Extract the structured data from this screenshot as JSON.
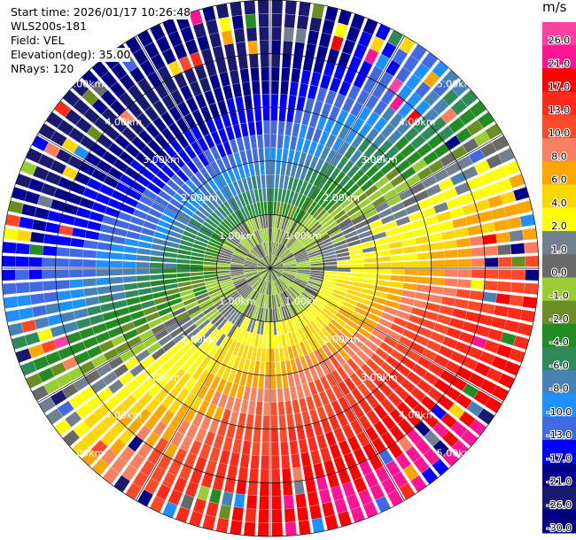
{
  "info": {
    "start_time": "Start time: 2026/01/17 10:26:48",
    "instrument": "WLS200s-181",
    "field": "Field: VEL",
    "elevation": "Elevation(deg): 35.00",
    "nrays": "NRays: 120"
  },
  "colorbar": {
    "unit": "m/s",
    "bins": [
      {
        "label": "26.0",
        "color": "#ff40a0"
      },
      {
        "label": "21.0",
        "color": "#ff1493"
      },
      {
        "label": "17.0",
        "color": "#ff0000"
      },
      {
        "label": "13.0",
        "color": "#ff2a1a"
      },
      {
        "label": "10.0",
        "color": "#ff4a2a"
      },
      {
        "label": "8.0",
        "color": "#fa8060"
      },
      {
        "label": "6.0",
        "color": "#ffa500"
      },
      {
        "label": "4.0",
        "color": "#ffd700"
      },
      {
        "label": "2.0",
        "color": "#ffff00"
      },
      {
        "label": "1.0",
        "color": "#708090"
      },
      {
        "label": "0.0",
        "color": "#696969"
      },
      {
        "label": "-1.0",
        "color": "#9acd32"
      },
      {
        "label": "-2.0",
        "color": "#6b8e23"
      },
      {
        "label": "-4.0",
        "color": "#228b22"
      },
      {
        "label": "-6.0",
        "color": "#2e8b57"
      },
      {
        "label": "-8.0",
        "color": "#4682b4"
      },
      {
        "label": "-10.0",
        "color": "#1e90ff"
      },
      {
        "label": "-13.0",
        "color": "#4169e1"
      },
      {
        "label": "-17.0",
        "color": "#0000ff"
      },
      {
        "label": "-21.0",
        "color": "#00008b"
      },
      {
        "label": "-26.0",
        "color": "#191970"
      },
      {
        "label": "-30.0",
        "color": "#000080"
      }
    ]
  },
  "chart_data": {
    "type": "heatmap",
    "projection": "polar (PPI)",
    "field": "VEL",
    "units": "m/s",
    "nrays": 120,
    "elevation_deg": 35.0,
    "range_rings_km": [
      1.0,
      2.0,
      3.0,
      4.0,
      5.0
    ],
    "ring_labels_nw": [
      "1.00km",
      "2.00km",
      "3.00km",
      "4.00km",
      "5.00km"
    ],
    "ring_labels_se": [
      "1.00km",
      "2.00km",
      "3.00km",
      "4.00km",
      "5.00km"
    ],
    "ring_labels_ne": [
      "1.00km",
      "2.00km",
      "3.00km",
      "4.00km",
      "5.00km"
    ],
    "ring_labels_sw": [
      "1.00km",
      "2.00km",
      "3.00km",
      "4.00km",
      "5.00km"
    ],
    "max_range_km": 5.0,
    "radial_gates_per_ray": 20,
    "velocity_levels": [
      -30.0,
      -26.0,
      -21.0,
      -17.0,
      -13.0,
      -10.0,
      -8.0,
      -6.0,
      -4.0,
      -2.0,
      -1.0,
      0.0,
      1.0,
      2.0,
      4.0,
      6.0,
      8.0,
      10.0,
      13.0,
      17.0,
      21.0,
      26.0
    ],
    "wind_pattern": {
      "approaching_sector": "northwest (negative velocities, blues/greens)",
      "receding_sector": "southeast (positive velocities, reds/oranges/yellows)",
      "max_inbound_mps": -26.0,
      "max_outbound_mps": 21.0,
      "direction_of_max_outbound_deg": 150,
      "near_zero_core_radius_km": 1.0
    }
  }
}
